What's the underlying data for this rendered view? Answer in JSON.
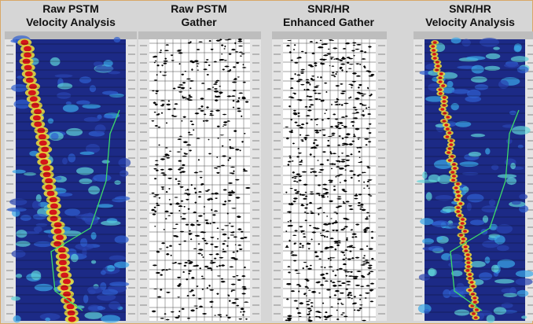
{
  "panels": [
    {
      "title_lines": [
        "Raw PSTM",
        "Velocity Analysis"
      ]
    },
    {
      "title_lines": [
        "Raw PSTM",
        "Gather"
      ]
    },
    {
      "title_lines": [
        "SNR/HR",
        "Enhanced Gather"
      ]
    },
    {
      "title_lines": [
        "SNR/HR",
        "Velocity Analysis"
      ]
    }
  ]
}
